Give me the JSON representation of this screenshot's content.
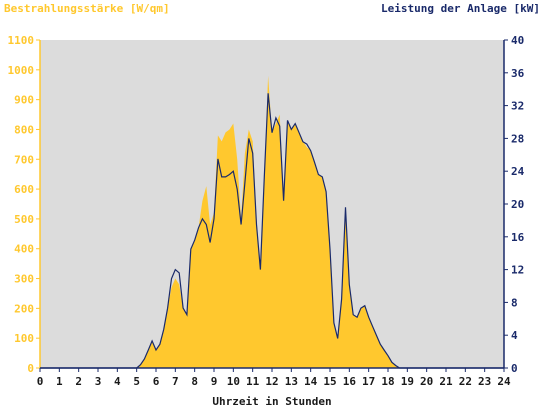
{
  "chart_data": {
    "type": "area",
    "left_title": "Bestrahlungsstärke [W/qm]",
    "right_title": "Leistung der Anlage [kW]",
    "xlabel": "Uhrzeit in Stunden",
    "x_ticks": [
      "0",
      "1",
      "2",
      "3",
      "4",
      "5",
      "6",
      "7",
      "8",
      "9",
      "10",
      "11",
      "12",
      "13",
      "14",
      "15",
      "16",
      "17",
      "18",
      "19",
      "20",
      "21",
      "22",
      "23",
      "24"
    ],
    "y_left_ticks": [
      "0",
      "100",
      "200",
      "300",
      "400",
      "500",
      "600",
      "700",
      "800",
      "900",
      "1000",
      "1100"
    ],
    "y_right_ticks": [
      "0",
      "4",
      "8",
      "12",
      "16",
      "20",
      "24",
      "28",
      "32",
      "36",
      "40"
    ],
    "xlim": [
      0,
      24
    ],
    "ylim_left": [
      0,
      1100
    ],
    "ylim_right": [
      0,
      40
    ],
    "grid": false,
    "series": [
      {
        "color": "#ffc82e",
        "axis": "left",
        "x": [
          0,
          5.0,
          5.2,
          5.4,
          5.6,
          5.8,
          6.0,
          6.2,
          6.4,
          6.6,
          6.8,
          7.0,
          7.2,
          7.4,
          7.6,
          7.8,
          8.0,
          8.2,
          8.4,
          8.6,
          8.8,
          9.0,
          9.2,
          9.4,
          9.6,
          9.8,
          10.0,
          10.2,
          10.4,
          10.6,
          10.8,
          11.0,
          11.2,
          11.4,
          11.6,
          11.8,
          12.0,
          12.2,
          12.4,
          12.6,
          12.8,
          13.0,
          13.2,
          13.4,
          13.6,
          13.8,
          14.0,
          14.2,
          14.4,
          14.6,
          14.8,
          15.0,
          15.2,
          15.4,
          15.6,
          15.8,
          16.0,
          16.2,
          16.4,
          16.6,
          16.8,
          17.0,
          17.2,
          17.4,
          17.6,
          17.8,
          18.0,
          18.2,
          18.4,
          18.6,
          18.8,
          19.0,
          19.2,
          19.4,
          19.6,
          19.8,
          20.0,
          20.2,
          24
        ],
        "values": [
          0,
          0,
          10,
          30,
          60,
          90,
          60,
          80,
          130,
          200,
          270,
          300,
          280,
          200,
          180,
          400,
          430,
          470,
          560,
          610,
          480,
          520,
          780,
          760,
          790,
          800,
          820,
          700,
          500,
          720,
          800,
          760,
          500,
          330,
          640,
          980,
          790,
          820,
          850,
          560,
          830,
          800,
          820,
          790,
          760,
          740,
          730,
          690,
          650,
          640,
          590,
          400,
          150,
          100,
          230,
          520,
          280,
          180,
          170,
          200,
          210,
          170,
          140,
          110,
          80,
          60,
          40,
          20,
          8,
          0,
          0,
          0,
          0,
          0,
          0,
          0,
          0,
          0,
          0
        ]
      },
      {
        "color": "#1a2a6a",
        "axis": "right",
        "x": [
          0,
          5.0,
          5.2,
          5.4,
          5.6,
          5.8,
          6.0,
          6.2,
          6.4,
          6.6,
          6.8,
          7.0,
          7.2,
          7.4,
          7.6,
          7.8,
          8.0,
          8.2,
          8.4,
          8.6,
          8.8,
          9.0,
          9.2,
          9.4,
          9.6,
          9.8,
          10.0,
          10.2,
          10.4,
          10.6,
          10.8,
          11.0,
          11.2,
          11.4,
          11.6,
          11.8,
          12.0,
          12.2,
          12.4,
          12.6,
          12.8,
          13.0,
          13.2,
          13.4,
          13.6,
          13.8,
          14.0,
          14.2,
          14.4,
          14.6,
          14.8,
          15.0,
          15.2,
          15.4,
          15.6,
          15.8,
          16.0,
          16.2,
          16.4,
          16.6,
          16.8,
          17.0,
          17.2,
          17.4,
          17.6,
          17.8,
          18.0,
          18.2,
          18.4,
          18.6,
          18.8,
          19.0,
          19.2,
          19.4,
          19.6,
          19.8,
          20.0,
          20.2,
          24
        ],
        "values": [
          0,
          0,
          0.4,
          1.1,
          2.2,
          3.3,
          2.2,
          2.9,
          4.7,
          7.3,
          10.9,
          12.0,
          11.6,
          7.3,
          6.5,
          14.5,
          15.6,
          17.1,
          18.2,
          17.5,
          15.3,
          18.2,
          25.5,
          23.3,
          23.3,
          23.6,
          24.0,
          21.8,
          17.5,
          22.6,
          28.0,
          26.2,
          17.5,
          12.0,
          23.3,
          33.5,
          28.7,
          30.5,
          29.5,
          20.4,
          30.2,
          29.1,
          29.8,
          28.7,
          27.6,
          27.3,
          26.5,
          25.1,
          23.6,
          23.3,
          21.5,
          14.5,
          5.5,
          3.6,
          8.4,
          19.6,
          10.2,
          6.5,
          6.2,
          7.3,
          7.6,
          6.2,
          5.1,
          4.0,
          2.9,
          2.2,
          1.5,
          0.7,
          0.3,
          0,
          0,
          0,
          0,
          0,
          0,
          0,
          0,
          0,
          0
        ]
      }
    ]
  }
}
